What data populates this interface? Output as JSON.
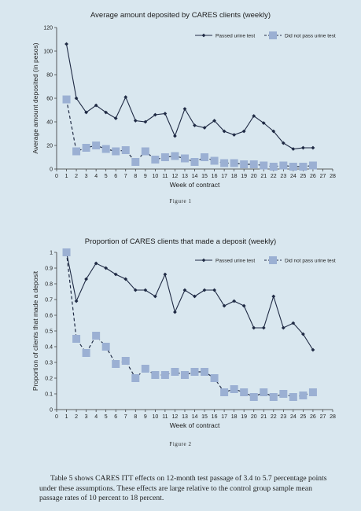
{
  "chart_data": [
    {
      "type": "line",
      "title": "Average amount deposited by CARES clients (weekly)",
      "figure_label": "Figure 1",
      "xlabel": "Week of contract",
      "ylabel": "Average amount deposited (in pesos)",
      "xlim": [
        0,
        28
      ],
      "ylim": [
        0,
        120
      ],
      "xticks": [
        "0",
        "1",
        "2",
        "3",
        "4",
        "5",
        "6",
        "7",
        "8",
        "9",
        "10",
        "11",
        "12",
        "13",
        "14",
        "15",
        "16",
        "17",
        "18",
        "19",
        "20",
        "21",
        "22",
        "23",
        "24",
        "25",
        "26",
        "27",
        "28"
      ],
      "yticks": [
        "0",
        "20",
        "40",
        "60",
        "80",
        "100",
        "120"
      ],
      "legend": "top-right",
      "series": [
        {
          "name": "Passed urine test",
          "color": "#1f2a44",
          "marker": "diamond",
          "x": [
            1,
            2,
            3,
            4,
            5,
            6,
            7,
            8,
            9,
            10,
            11,
            12,
            13,
            14,
            15,
            16,
            17,
            18,
            19,
            20,
            21,
            22,
            23,
            24,
            25,
            26
          ],
          "values": [
            106,
            60,
            48,
            54,
            48,
            43,
            61,
            41,
            40,
            46,
            47,
            28,
            51,
            37,
            35,
            41,
            32,
            29,
            32,
            45,
            39,
            32,
            22,
            17,
            18,
            18
          ]
        },
        {
          "name": "Did not pass urine test",
          "color": "#9bb0d3",
          "marker": "square",
          "x": [
            1,
            2,
            3,
            4,
            5,
            6,
            7,
            8,
            9,
            10,
            11,
            12,
            13,
            14,
            15,
            16,
            17,
            18,
            19,
            20,
            21,
            22,
            23,
            24,
            25,
            26
          ],
          "values": [
            59,
            15,
            18,
            20,
            17,
            15,
            16,
            6,
            15,
            8,
            10,
            11,
            9,
            6,
            10,
            7,
            5,
            5,
            4,
            4,
            3,
            2,
            3,
            2,
            2,
            3
          ]
        }
      ]
    },
    {
      "type": "line",
      "title": "Proportion of CARES clients that made a deposit (weekly)",
      "figure_label": "Figure 2",
      "xlabel": "Week of contract",
      "ylabel": "Proportion of clients that made a deposit",
      "xlim": [
        0,
        28
      ],
      "ylim": [
        0,
        1
      ],
      "xticks": [
        "0",
        "1",
        "2",
        "3",
        "4",
        "5",
        "6",
        "7",
        "8",
        "9",
        "10",
        "11",
        "12",
        "13",
        "14",
        "15",
        "16",
        "17",
        "18",
        "19",
        "20",
        "21",
        "22",
        "23",
        "24",
        "25",
        "26",
        "27",
        "28"
      ],
      "yticks": [
        "0",
        "0.1",
        "0.2",
        "0.3",
        "0.4",
        "0.5",
        "0.6",
        "0.7",
        "0.8",
        "0.9",
        "1"
      ],
      "legend": "top-right",
      "series": [
        {
          "name": "Passed urine test",
          "color": "#1f2a44",
          "marker": "diamond",
          "x": [
            1,
            2,
            3,
            4,
            5,
            6,
            7,
            8,
            9,
            10,
            11,
            12,
            13,
            14,
            15,
            16,
            17,
            18,
            19,
            20,
            21,
            22,
            23,
            24,
            25,
            26
          ],
          "values": [
            1.0,
            0.69,
            0.83,
            0.93,
            0.9,
            0.86,
            0.83,
            0.76,
            0.76,
            0.72,
            0.86,
            0.62,
            0.76,
            0.72,
            0.76,
            0.76,
            0.66,
            0.69,
            0.66,
            0.52,
            0.52,
            0.72,
            0.52,
            0.55,
            0.48,
            0.38
          ]
        },
        {
          "name": "Did not pass urine test",
          "color": "#9bb0d3",
          "marker": "square",
          "x": [
            1,
            2,
            3,
            4,
            5,
            6,
            7,
            8,
            9,
            10,
            11,
            12,
            13,
            14,
            15,
            16,
            17,
            18,
            19,
            20,
            21,
            22,
            23,
            24,
            25,
            26
          ],
          "values": [
            1.0,
            0.45,
            0.36,
            0.47,
            0.4,
            0.29,
            0.31,
            0.2,
            0.26,
            0.22,
            0.22,
            0.24,
            0.22,
            0.24,
            0.24,
            0.2,
            0.11,
            0.13,
            0.11,
            0.08,
            0.11,
            0.08,
            0.1,
            0.08,
            0.09,
            0.11
          ]
        }
      ]
    }
  ],
  "text": {
    "paragraph": "Table 5 shows CARES ITT effects on 12-month test passage of 3.4 to 5.7 percentage points under these assumptions. These effects are large relative to the control group sample mean passage rates of 10 percent to 18 percent."
  }
}
